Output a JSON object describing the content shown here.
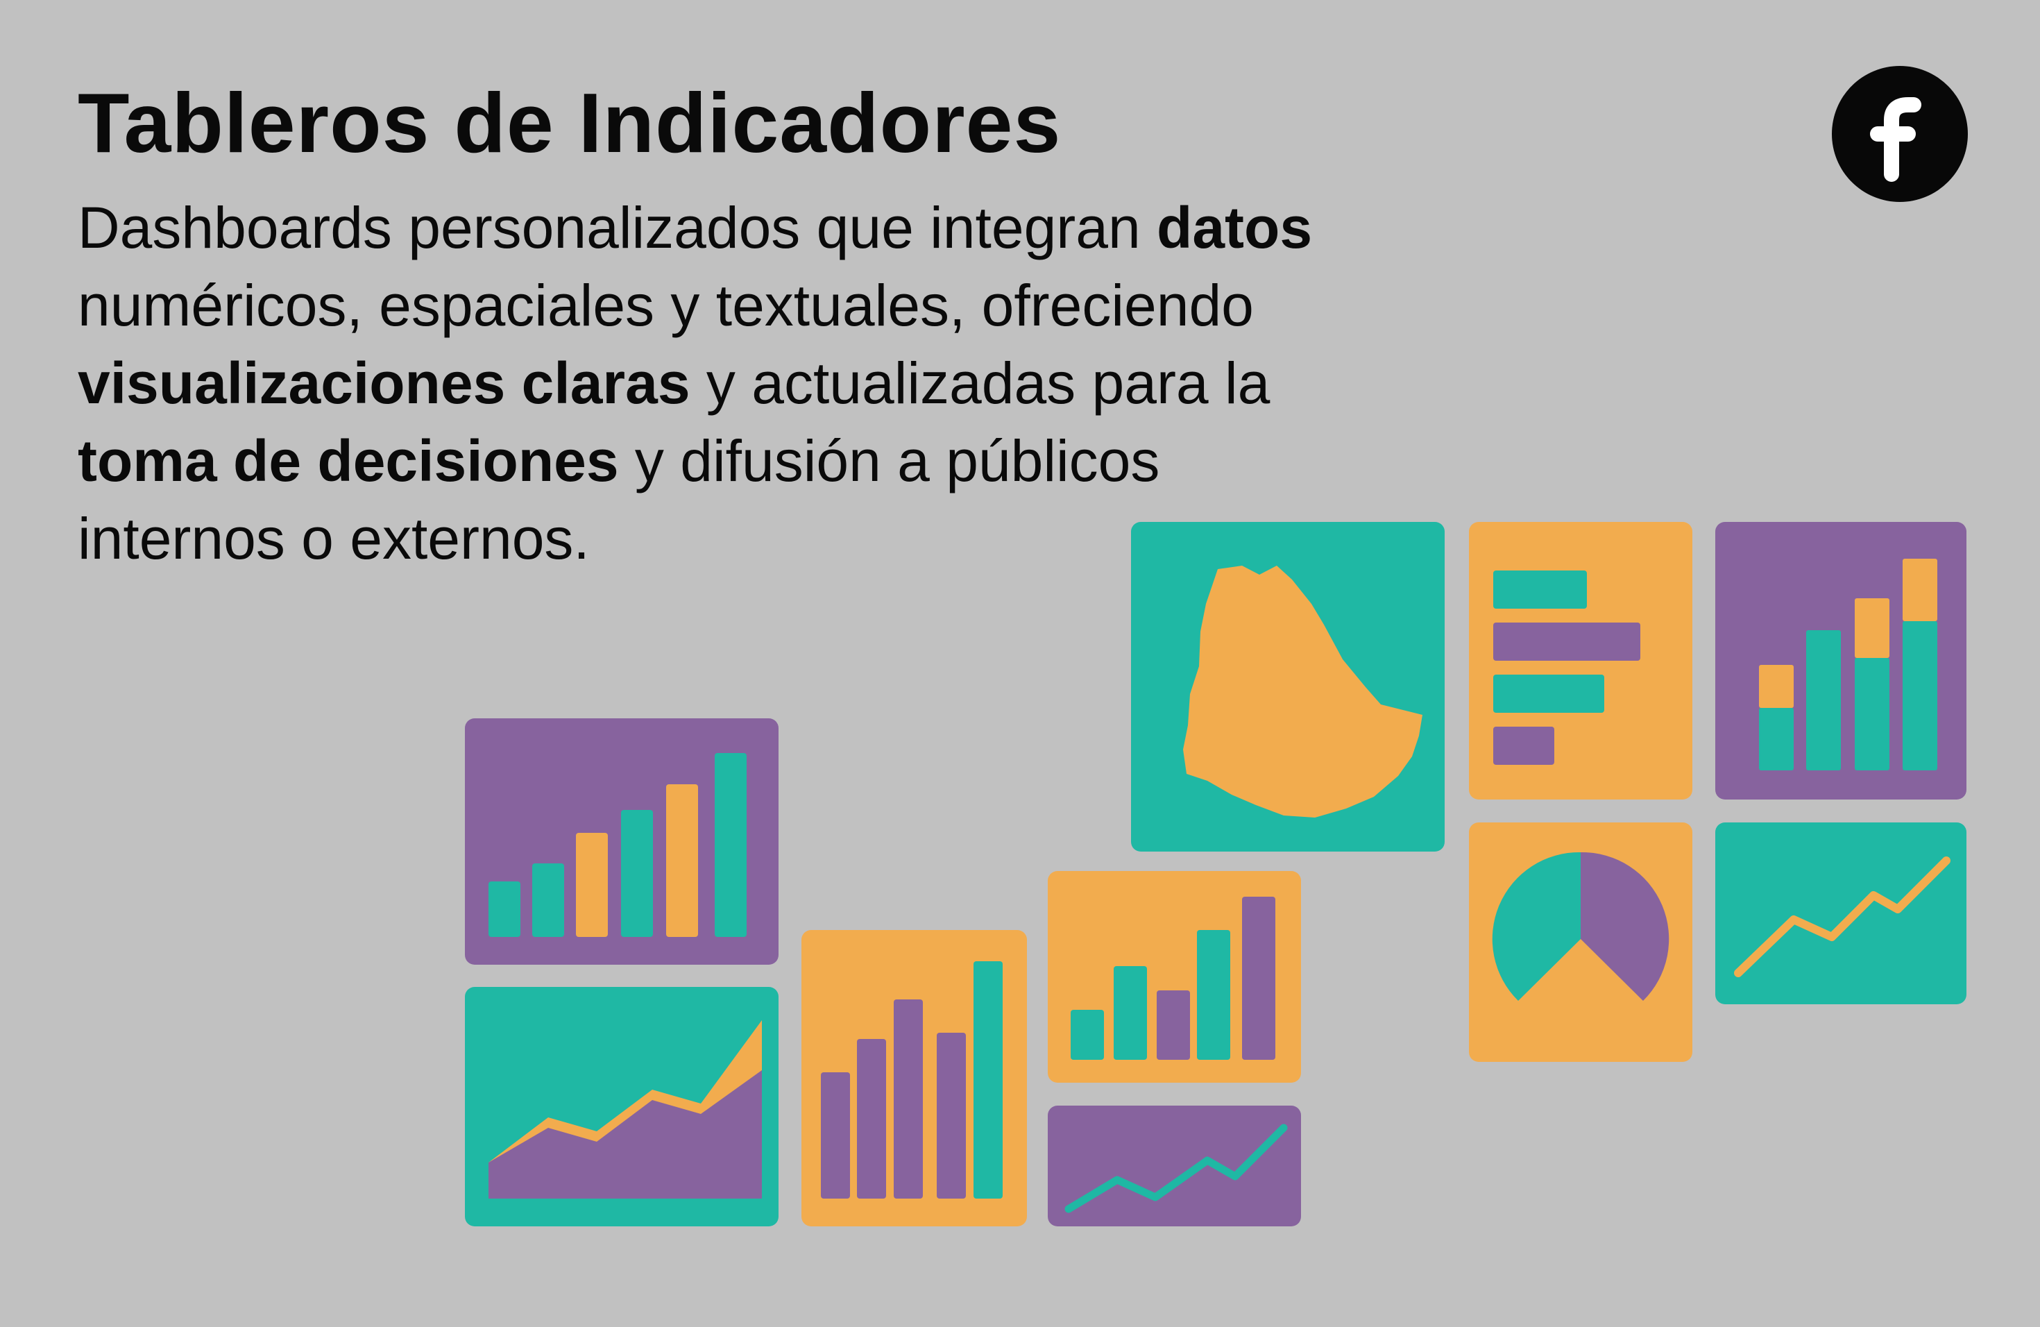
{
  "heading": {
    "title": "Tableros de Indicadores"
  },
  "description": {
    "p1": "Dashboards personalizados que integran ",
    "b1": "datos",
    "p2": " numéricos, espaciales y textuales, ofreciendo ",
    "b2": "visualizaciones claras",
    "p3": " y actualizadas para la ",
    "b3": "toma de decisiones",
    "p4": " y difusión a públicos internos o externos."
  },
  "social": {
    "icon": "facebook-icon",
    "color": "#080808"
  },
  "colors": {
    "background": "#c1c1c1",
    "teal": "#1fb8a4",
    "orange": "#f2ac4e",
    "purple": "#87639e"
  }
}
